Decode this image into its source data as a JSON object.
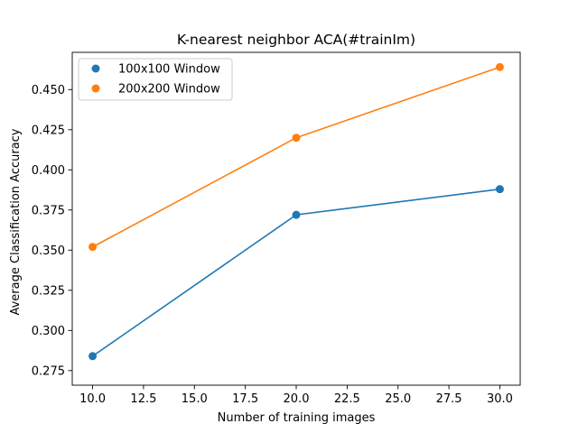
{
  "chart_data": {
    "type": "line",
    "title": "K-nearest neighbor ACA(#trainIm)",
    "xlabel": "Number of training images",
    "ylabel": "Average Classification Accuracy",
    "x": [
      10,
      20,
      30
    ],
    "xlim": [
      9,
      31
    ],
    "ylim": [
      0.2659,
      0.4732
    ],
    "xticks": [
      10.0,
      12.5,
      15.0,
      17.5,
      20.0,
      22.5,
      25.0,
      27.5,
      30.0
    ],
    "xtick_labels": [
      "10.0",
      "12.5",
      "15.0",
      "17.5",
      "20.0",
      "22.5",
      "25.0",
      "27.5",
      "30.0"
    ],
    "yticks": [
      0.275,
      0.3,
      0.325,
      0.35,
      0.375,
      0.4,
      0.425,
      0.45
    ],
    "ytick_labels": [
      "0.275",
      "0.300",
      "0.325",
      "0.350",
      "0.375",
      "0.400",
      "0.425",
      "0.450"
    ],
    "grid": false,
    "legend_position": "upper-left",
    "series": [
      {
        "name": "100x100 Window",
        "color": "#1f77b4",
        "values": [
          0.284,
          0.372,
          0.388
        ]
      },
      {
        "name": "200x200 Window",
        "color": "#ff7f0e",
        "values": [
          0.352,
          0.42,
          0.464
        ]
      }
    ]
  }
}
